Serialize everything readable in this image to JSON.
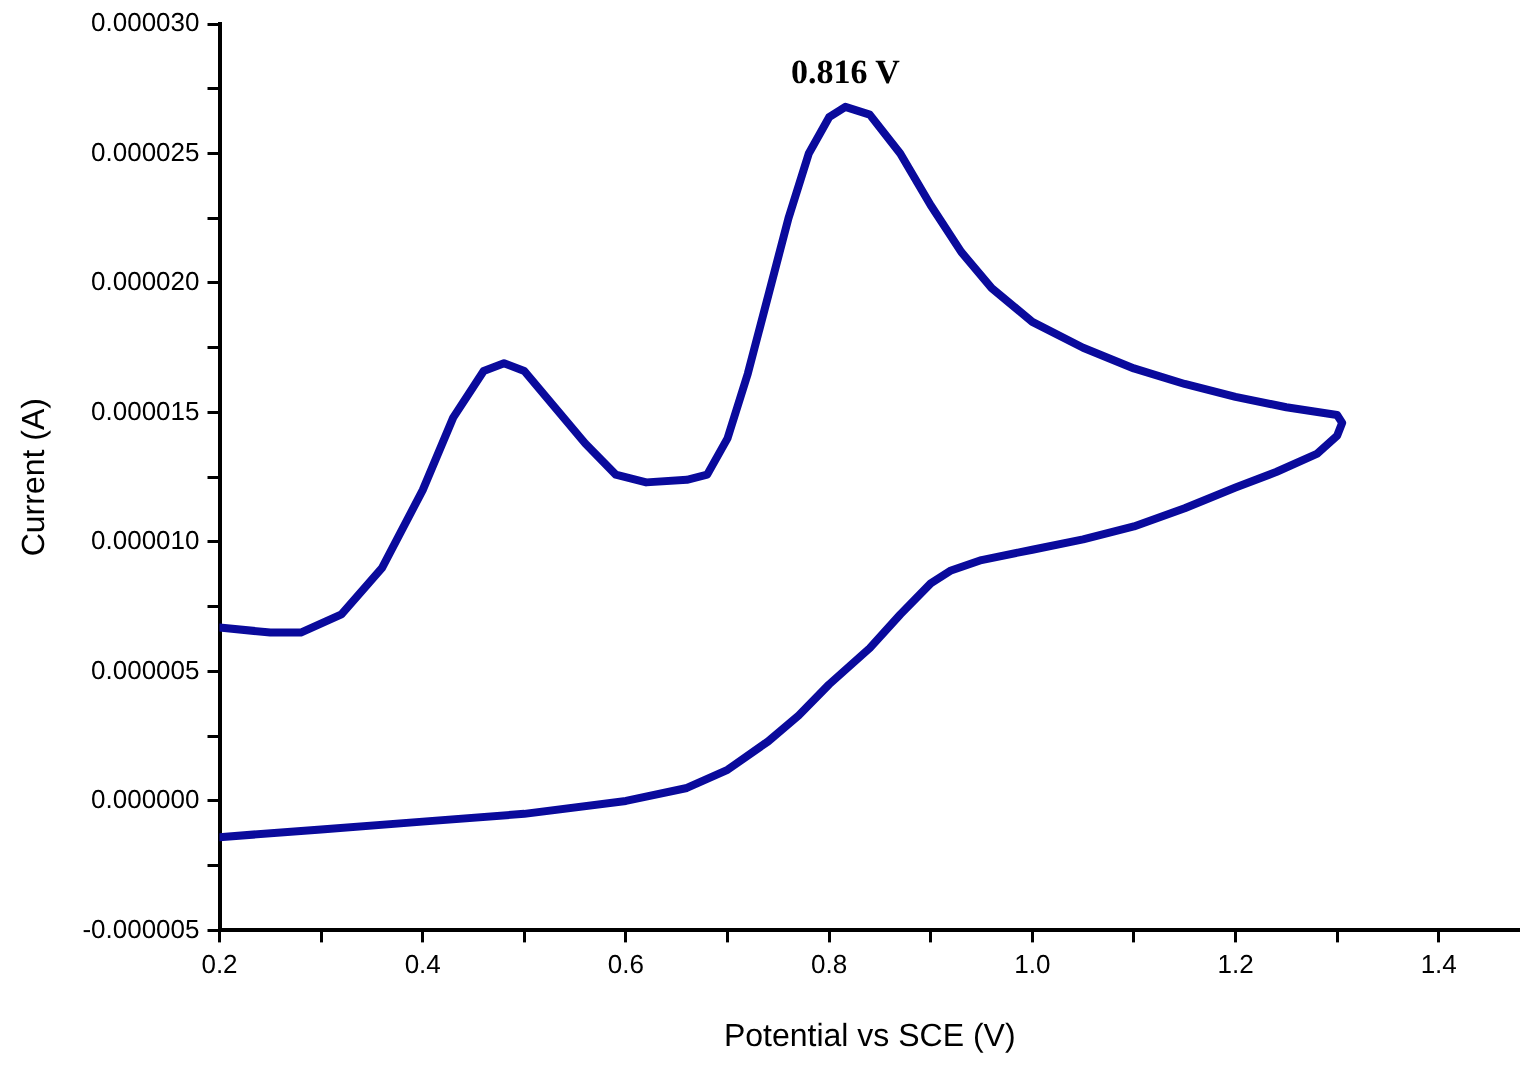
{
  "chart_data": {
    "type": "line",
    "xlabel": "Potential vs SCE (V)",
    "ylabel": "Current (A)",
    "annotations": [
      "0.816 V"
    ],
    "xlim": [
      0.2,
      1.48
    ],
    "ylim": [
      -5e-06,
      3e-05
    ],
    "xticks": [
      {
        "value": 0.2,
        "label": "0.2"
      },
      {
        "value": 0.3,
        "label": null
      },
      {
        "value": 0.4,
        "label": "0.4"
      },
      {
        "value": 0.5,
        "label": null
      },
      {
        "value": 0.6,
        "label": "0.6"
      },
      {
        "value": 0.7,
        "label": null
      },
      {
        "value": 0.8,
        "label": "0.8"
      },
      {
        "value": 0.9,
        "label": null
      },
      {
        "value": 1.0,
        "label": "1.0"
      },
      {
        "value": 1.1,
        "label": null
      },
      {
        "value": 1.2,
        "label": "1.2"
      },
      {
        "value": 1.3,
        "label": null
      },
      {
        "value": 1.4,
        "label": "1.4"
      }
    ],
    "yticks": [
      {
        "value": -5e-06,
        "label": "-0.000005"
      },
      {
        "value": -2.5e-06,
        "label": null
      },
      {
        "value": 0,
        "label": "0.000000"
      },
      {
        "value": 2.5e-06,
        "label": null
      },
      {
        "value": 5e-06,
        "label": "0.000005"
      },
      {
        "value": 7.5e-06,
        "label": null
      },
      {
        "value": 1e-05,
        "label": "0.000010"
      },
      {
        "value": 1.25e-05,
        "label": null
      },
      {
        "value": 1.5e-05,
        "label": "0.000015"
      },
      {
        "value": 1.75e-05,
        "label": null
      },
      {
        "value": 2e-05,
        "label": "0.000020"
      },
      {
        "value": 2.25e-05,
        "label": null
      },
      {
        "value": 2.5e-05,
        "label": "0.000025"
      },
      {
        "value": 2.75e-05,
        "label": null
      },
      {
        "value": 3e-05,
        "label": "0.000030"
      }
    ],
    "grid": false,
    "legend": false,
    "marker": "none",
    "line_style": "solid",
    "series": [
      {
        "color": "#0a0a9c",
        "x": [
          0.2,
          0.25,
          0.28,
          0.32,
          0.36,
          0.4,
          0.43,
          0.46,
          0.48,
          0.5,
          0.53,
          0.56,
          0.59,
          0.62,
          0.66,
          0.68,
          0.7,
          0.72,
          0.74,
          0.76,
          0.78,
          0.8,
          0.816,
          0.84,
          0.87,
          0.9,
          0.93,
          0.96,
          1.0,
          1.05,
          1.1,
          1.15,
          1.2,
          1.25,
          1.3,
          1.305,
          1.3,
          1.28,
          1.24,
          1.2,
          1.15,
          1.1,
          1.05,
          1.0,
          0.95,
          0.92,
          0.9,
          0.87,
          0.84,
          0.8,
          0.77,
          0.74,
          0.7,
          0.66,
          0.6,
          0.5,
          0.4,
          0.3,
          0.2
        ],
        "values": [
          6.7e-06,
          6.5e-06,
          6.5e-06,
          7.2e-06,
          9e-06,
          1.2e-05,
          1.48e-05,
          1.66e-05,
          1.69e-05,
          1.66e-05,
          1.52e-05,
          1.38e-05,
          1.26e-05,
          1.23e-05,
          1.24e-05,
          1.26e-05,
          1.4e-05,
          1.65e-05,
          1.95e-05,
          2.25e-05,
          2.5e-05,
          2.64e-05,
          2.68e-05,
          2.65e-05,
          2.5e-05,
          2.3e-05,
          2.12e-05,
          1.98e-05,
          1.85e-05,
          1.75e-05,
          1.67e-05,
          1.61e-05,
          1.56e-05,
          1.52e-05,
          1.49e-05,
          1.46e-05,
          1.41e-05,
          1.34e-05,
          1.27e-05,
          1.21e-05,
          1.13e-05,
          1.06e-05,
          1.01e-05,
          9.7e-06,
          9.3e-06,
          8.9e-06,
          8.4e-06,
          7.2e-06,
          5.9e-06,
          4.5e-06,
          3.3e-06,
          2.3e-06,
          1.2e-06,
          5e-07,
          0,
          -5e-07,
          -8e-07,
          -1.1e-06,
          -1.4e-06
        ]
      }
    ]
  }
}
